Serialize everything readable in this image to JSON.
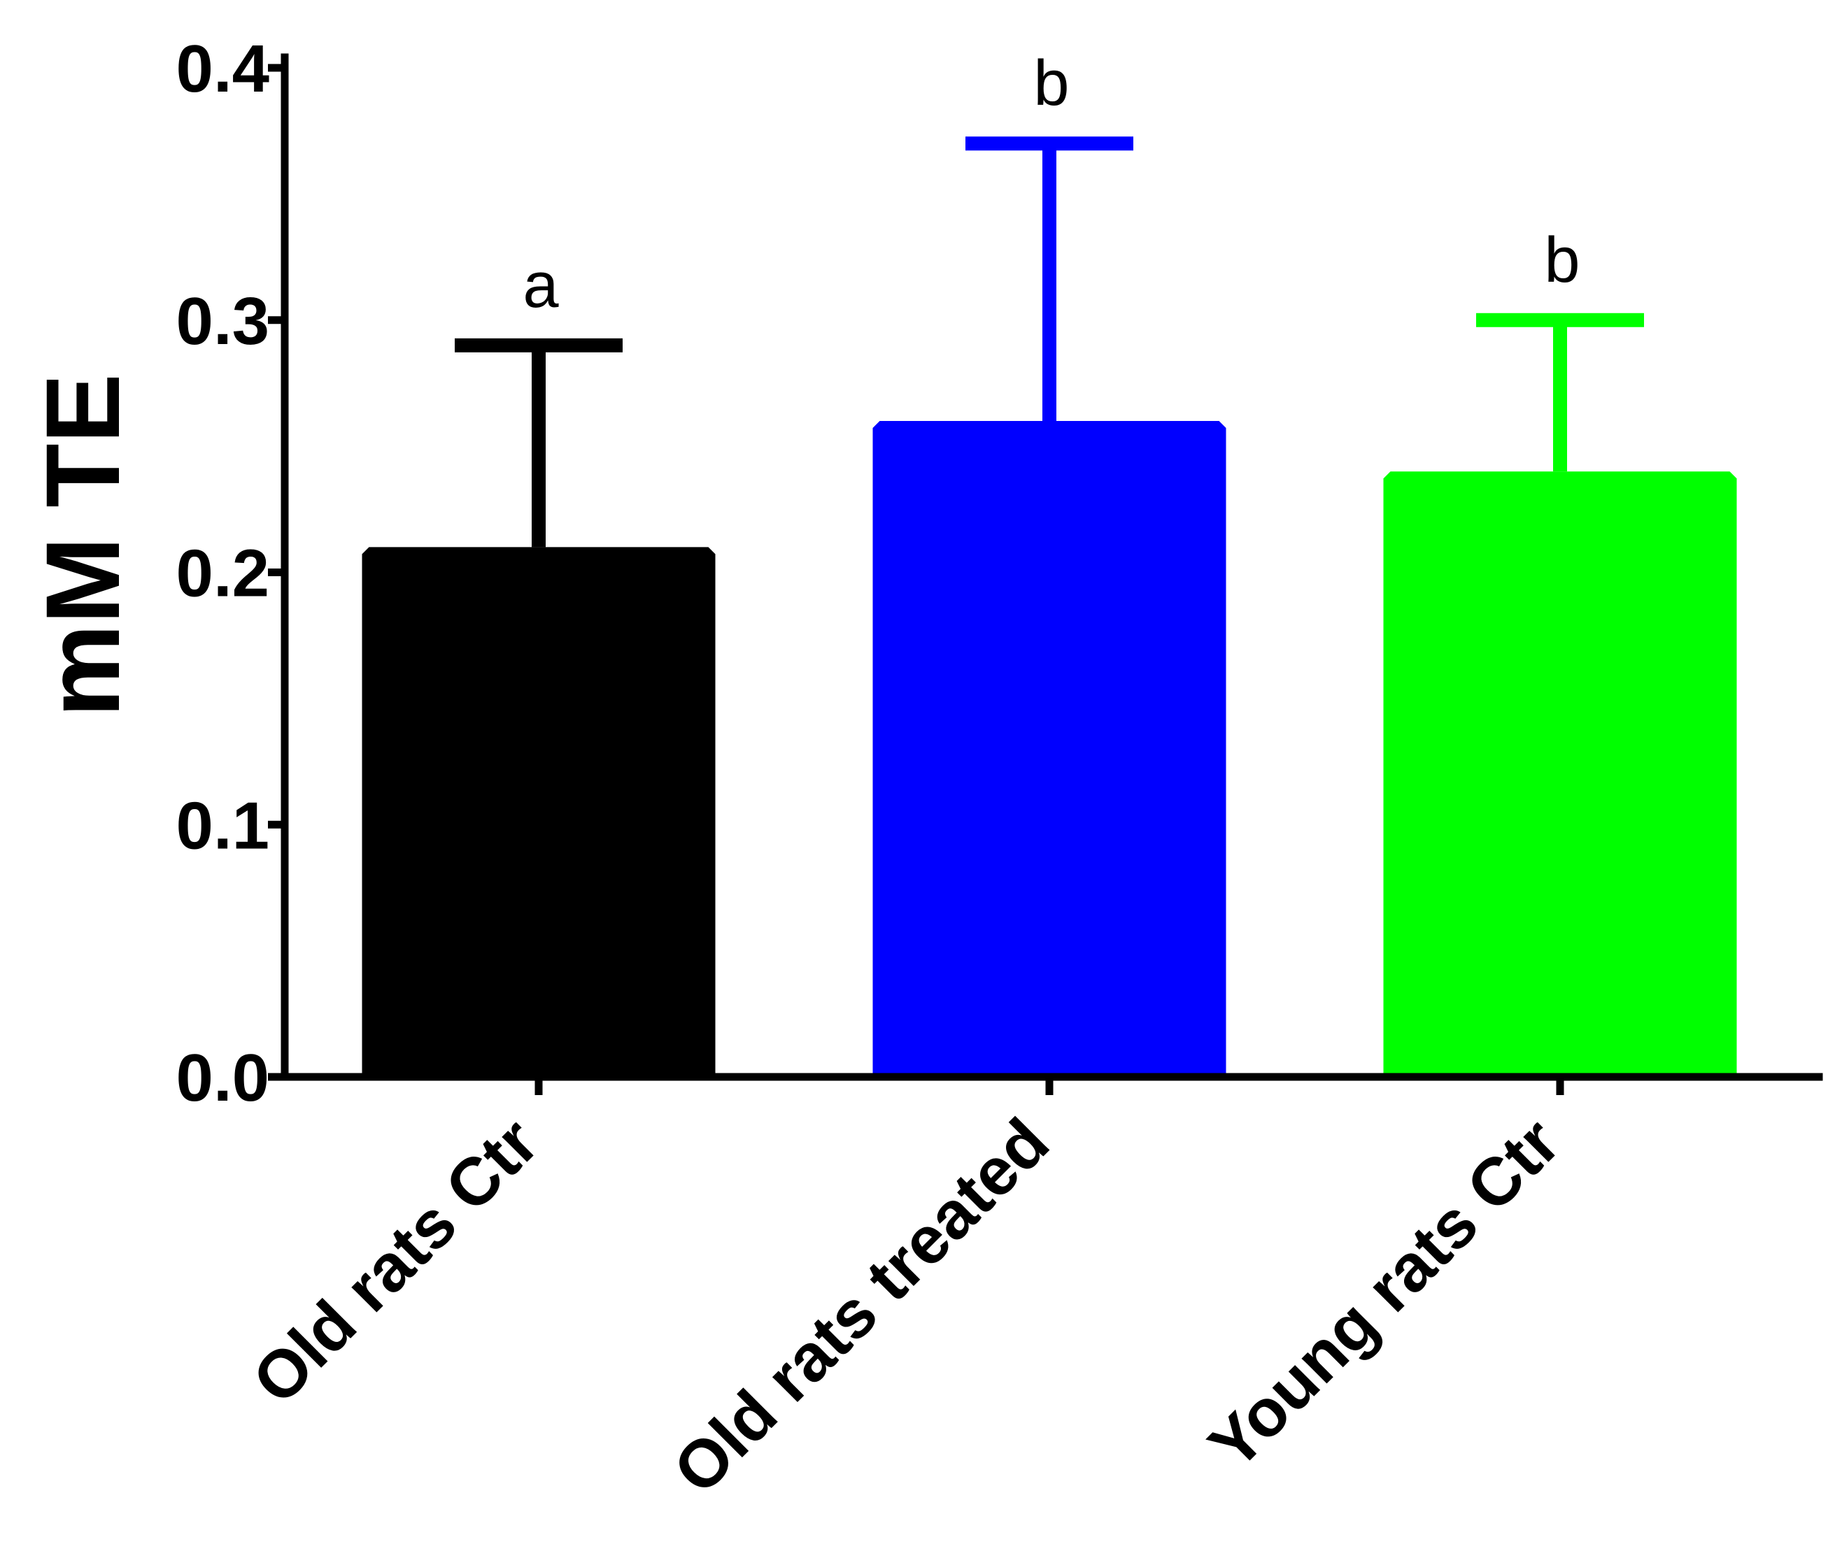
{
  "chart_data": {
    "type": "bar",
    "title": "",
    "xlabel": "",
    "ylabel": "mM TE",
    "ylim": [
      0,
      0.4
    ],
    "yticks": [
      0.0,
      0.1,
      0.2,
      0.3,
      0.4
    ],
    "ytick_labels": [
      "0.0",
      "0.1",
      "0.2",
      "0.3",
      "0.4"
    ],
    "categories": [
      "Old rats Ctr",
      "Old rats treated",
      "Young rats Ctr"
    ],
    "values": [
      0.21,
      0.26,
      0.24
    ],
    "error_upper": [
      0.29,
      0.37,
      0.3
    ],
    "colors": [
      "#000000",
      "#0000ff",
      "#00ff00"
    ],
    "significance_labels": [
      "a",
      "b",
      "b"
    ],
    "grid": false,
    "legend": "none"
  }
}
